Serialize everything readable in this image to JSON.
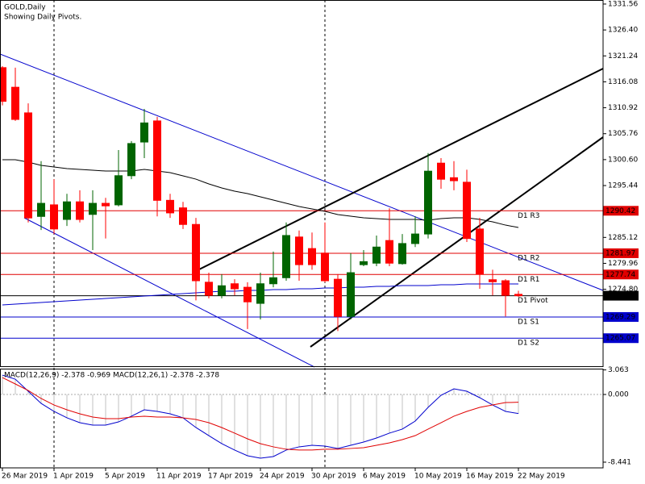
{
  "chart_data": [
    {
      "type": "candlestick",
      "title": "GOLD,Daily",
      "subtitle": "Showing Daily Pivots.",
      "categories": [
        "26 Mar 2019",
        null,
        null,
        null,
        "1 Apr 2019",
        null,
        null,
        null,
        "5 Apr 2019",
        null,
        null,
        null,
        "11 Apr 2019",
        null,
        null,
        null,
        "17 Apr 2019",
        null,
        null,
        null,
        "24 Apr 2019",
        null,
        null,
        null,
        "30 Apr 2019",
        null,
        null,
        null,
        "6 May 2019",
        null,
        null,
        null,
        "10 May 2019",
        null,
        null,
        null,
        "16 May 2019",
        null,
        null,
        null,
        "22 May 2019"
      ],
      "open": [
        1318.9,
        1315.0,
        1309.9,
        1289.3,
        1291.6,
        1288.7,
        1292.2,
        1289.7,
        1291.9,
        1291.6,
        1297.4,
        1304.1,
        1308.3,
        1292.5,
        1291.0,
        1287.7,
        1276.2,
        1273.6,
        1275.9,
        1275.2,
        1272.0,
        1275.9,
        1277.1,
        1285.2,
        1282.9,
        1282.0,
        1276.8,
        1269.4,
        1279.7,
        1280.0,
        1284.5,
        1279.9,
        1283.9,
        1285.8,
        1299.9,
        1297.0,
        1296.1,
        1286.8,
        1276.7,
        1276.5,
        1273.8
      ],
      "high": [
        1319.2,
        1318.9,
        1311.8,
        1300.3,
        1296.7,
        1293.8,
        1294.5,
        1294.5,
        1293.0,
        1302.5,
        1304.3,
        1310.7,
        1309.1,
        1293.8,
        1292.2,
        1289.0,
        1278.1,
        1277.8,
        1276.8,
        1276.2,
        1278.1,
        1282.3,
        1288.1,
        1286.5,
        1286.1,
        1288.1,
        1277.8,
        1282.0,
        1282.6,
        1285.5,
        1290.9,
        1285.8,
        1289.3,
        1301.9,
        1300.9,
        1300.3,
        1298.6,
        1289.0,
        1278.7,
        1276.8,
        1274.5
      ],
      "low": [
        1311.4,
        1308.3,
        1288.1,
        1286.6,
        1285.8,
        1287.4,
        1288.1,
        1282.6,
        1284.9,
        1291.3,
        1296.7,
        1300.9,
        1289.3,
        1289.0,
        1286.8,
        1272.6,
        1273.0,
        1273.0,
        1273.6,
        1266.9,
        1268.8,
        1275.2,
        1276.5,
        1276.5,
        1278.7,
        1276.2,
        1266.5,
        1268.8,
        1279.4,
        1279.4,
        1279.4,
        1279.7,
        1283.2,
        1284.9,
        1294.8,
        1294.5,
        1284.2,
        1274.9,
        1273.6,
        1269.4,
        1273.3
      ],
      "close": [
        1312.2,
        1308.6,
        1289.0,
        1291.9,
        1286.8,
        1292.2,
        1288.7,
        1291.9,
        1291.4,
        1297.4,
        1303.8,
        1307.9,
        1292.5,
        1290.0,
        1287.7,
        1276.5,
        1273.6,
        1275.5,
        1274.9,
        1272.3,
        1275.9,
        1277.1,
        1285.5,
        1279.7,
        1279.7,
        1276.5,
        1269.4,
        1278.1,
        1280.3,
        1283.2,
        1280.0,
        1283.9,
        1285.8,
        1298.3,
        1296.7,
        1296.4,
        1284.9,
        1277.8,
        1276.3,
        1273.6,
        1273.52
      ],
      "up_color": "#006400",
      "down_color": "#ff0000",
      "overlays": [
        {
          "color": "#000000",
          "values": [
            1300.58,
            1300.58,
            1300.09,
            1299.45,
            1299.13,
            1298.81,
            1298.65,
            1298.49,
            1298.33,
            1298.33,
            1298.33,
            1298.65,
            1298.33,
            1298.01,
            1297.37,
            1296.72,
            1295.76,
            1294.96,
            1294.32,
            1293.83,
            1293.19,
            1292.55,
            1291.91,
            1291.27,
            1290.78,
            1290.3,
            1289.66,
            1289.34,
            1289.02,
            1288.86,
            1288.7,
            1288.7,
            1288.7,
            1288.54,
            1288.86,
            1289.02,
            1289.02,
            1288.7,
            1288.22,
            1287.57,
            1287.09
          ]
        },
        {
          "color": "#0000cd",
          "values": [
            1271.68,
            1271.84,
            1272.0,
            1272.17,
            1272.33,
            1272.49,
            1272.65,
            1272.81,
            1272.97,
            1273.13,
            1273.29,
            1273.45,
            1273.61,
            1273.77,
            1273.93,
            1274.09,
            1274.25,
            1274.41,
            1274.41,
            1274.57,
            1274.57,
            1274.73,
            1274.73,
            1274.89,
            1274.89,
            1275.05,
            1275.05,
            1275.22,
            1275.22,
            1275.38,
            1275.38,
            1275.54,
            1275.54,
            1275.54,
            1275.7,
            1275.7,
            1275.86,
            1275.86,
            1275.86,
            1275.86,
            1275.86
          ]
        }
      ],
      "levels": [
        {
          "label": "D1 R3",
          "value": 1290.42,
          "color": "#e00000"
        },
        {
          "label": "D1 R2",
          "value": 1281.97,
          "color": "#e00000"
        },
        {
          "label": "D1 R1",
          "value": 1277.74,
          "color": "#e00000"
        },
        {
          "label": "D1 Pivot",
          "value": 1273.52,
          "color": "#000000"
        },
        {
          "label": "D1 S1",
          "value": 1269.29,
          "color": "#0000cd"
        },
        {
          "label": "D1 S2",
          "value": 1265.07,
          "color": "#0000cd"
        }
      ],
      "ylim": [
        1259.65,
        1332.36
      ],
      "yticks": [
        1331.56,
        {
          "value": 1326.4,
          "label": "1326.40"
        },
        1321.24,
        1316.08,
        1310.92,
        1305.76,
        {
          "value": 1300.6,
          "label": "1300.60"
        },
        1295.44,
        1285.12,
        1279.96,
        {
          "value": 1274.8,
          "label": "1274.80"
        }
      ]
    },
    {
      "type": "macd",
      "title": "MACD(12,26,9) -2.378 -0.969 MACD(12,26,1) -2.378 -2.378",
      "series": [
        {
          "color": "#0000cd",
          "values": [
            2.41,
            1.91,
            0.4,
            -1.11,
            -2.11,
            -2.91,
            -3.52,
            -3.82,
            -3.82,
            -3.42,
            -2.71,
            -1.91,
            -2.11,
            -2.41,
            -2.91,
            -4.12,
            -5.13,
            -6.13,
            -6.93,
            -7.64,
            -7.94,
            -7.74,
            -6.93,
            -6.53,
            -6.33,
            -6.43,
            -6.73,
            -6.33,
            -5.93,
            -5.43,
            -4.82,
            -4.32,
            -3.32,
            -1.61,
            -0.1,
            0.7,
            0.4,
            -0.4,
            -1.31,
            -2.11,
            -2.378
          ]
        },
        {
          "color": "#e00000",
          "values": [
            2.11,
            1.31,
            0.5,
            -0.5,
            -1.31,
            -1.91,
            -2.41,
            -2.81,
            -3.02,
            -3.02,
            -2.81,
            -2.71,
            -2.81,
            -2.81,
            -2.91,
            -3.12,
            -3.52,
            -4.12,
            -4.82,
            -5.53,
            -6.13,
            -6.53,
            -6.83,
            -6.93,
            -6.93,
            -6.83,
            -6.83,
            -6.73,
            -6.63,
            -6.33,
            -6.03,
            -5.63,
            -5.13,
            -4.32,
            -3.52,
            -2.71,
            -2.11,
            -1.61,
            -1.31,
            -1.01,
            -0.969
          ]
        }
      ],
      "histogram_color": "#c0c0c0",
      "ylim": [
        -9.15,
        3.22
      ],
      "yticks": [
        3.063,
        {
          "value": 0,
          "label": "0.000"
        },
        -8.441
      ]
    }
  ]
}
